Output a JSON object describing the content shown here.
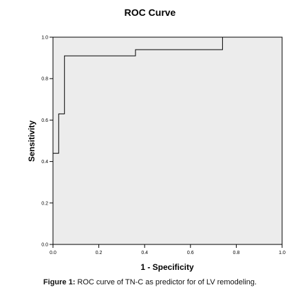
{
  "chart_data": {
    "type": "line",
    "title": "ROC Curve",
    "xlabel": "1 - Specificity",
    "ylabel": "Sensitivity",
    "xlim": [
      0,
      1
    ],
    "ylim": [
      0,
      1
    ],
    "x_ticks": [
      "0.0",
      "0.2",
      "0.4",
      "0.6",
      "0.8",
      "1.0"
    ],
    "y_ticks": [
      "0.0",
      "0.2",
      "0.4",
      "0.6",
      "0.8",
      "1.0"
    ],
    "grid": false,
    "plot_background": "#ececec",
    "line_color": "#000000",
    "series": [
      {
        "x": [
          0.0,
          0.0,
          0.025,
          0.025,
          0.05,
          0.05,
          0.36,
          0.36,
          0.74,
          0.74,
          1.0
        ],
        "y": [
          0.0,
          0.44,
          0.44,
          0.63,
          0.63,
          0.91,
          0.91,
          0.94,
          0.94,
          1.0,
          1.0
        ]
      }
    ]
  },
  "caption": {
    "label": "Figure 1:",
    "text": " ROC curve of TN-C as predictor for of LV remodeling."
  }
}
